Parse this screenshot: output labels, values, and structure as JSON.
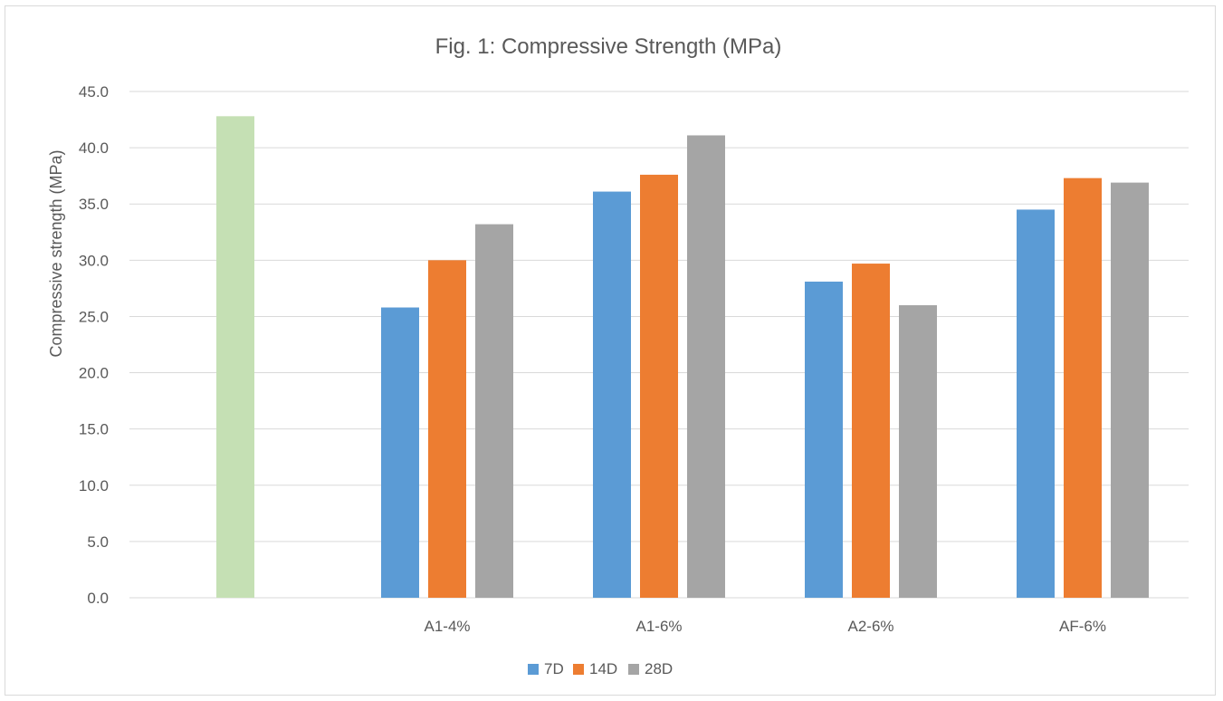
{
  "chart_data": {
    "type": "bar",
    "title": "Fig. 1: Compressive Strength (MPa)",
    "xlabel": "",
    "ylabel": "Compressive strength (MPa)",
    "ylim": [
      0,
      45
    ],
    "yticks": [
      "0.0",
      "5.0",
      "10.0",
      "15.0",
      "20.0",
      "25.0",
      "30.0",
      "35.0",
      "40.0",
      "45.0"
    ],
    "grid": true,
    "legend_position": "bottom",
    "categories": [
      "",
      "A1-4%",
      "A1-6%",
      "A2-6%",
      "AF-6%"
    ],
    "control_bar": {
      "category": "",
      "value": 42.8,
      "color": "#c5e0b4"
    },
    "series": [
      {
        "name": "7D",
        "color": "#5b9bd5",
        "values": [
          null,
          25.8,
          36.1,
          28.1,
          34.5
        ]
      },
      {
        "name": "14D",
        "color": "#ed7d31",
        "values": [
          null,
          30.0,
          37.6,
          29.7,
          37.3
        ]
      },
      {
        "name": "28D",
        "color": "#a5a5a5",
        "values": [
          null,
          33.2,
          41.1,
          26.0,
          36.9
        ]
      }
    ]
  }
}
